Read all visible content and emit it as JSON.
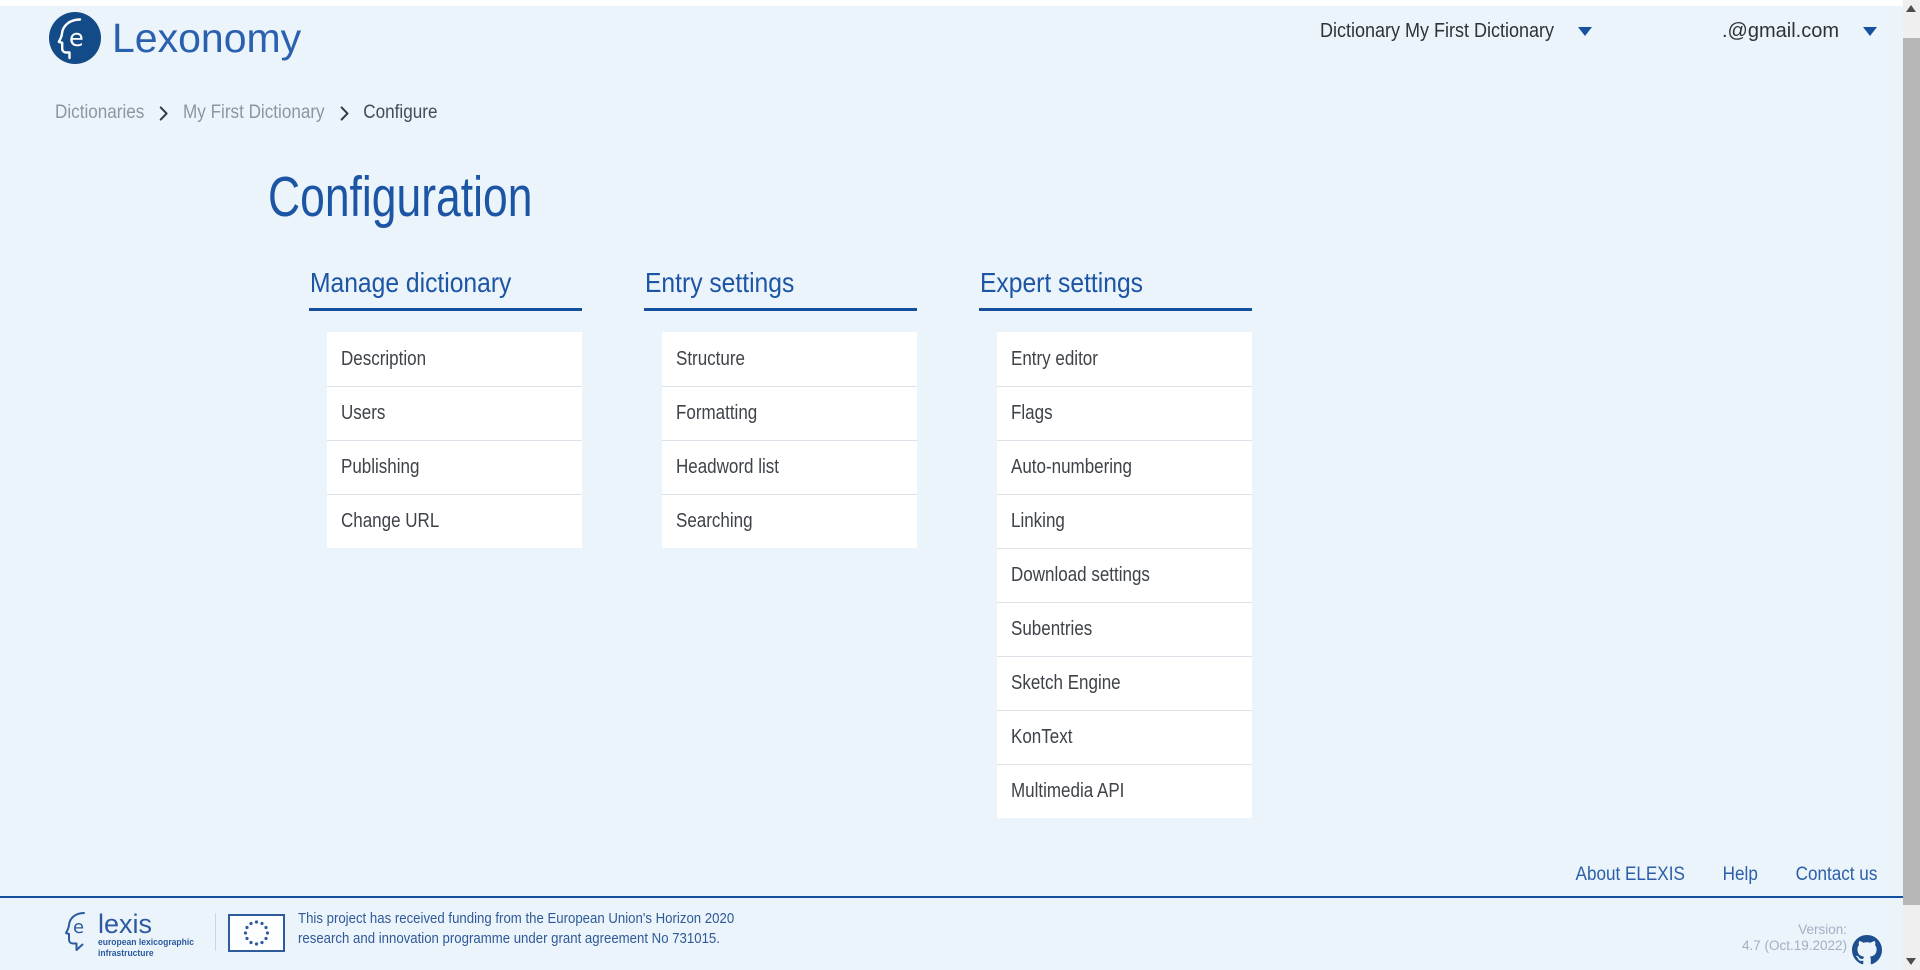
{
  "header": {
    "logo": {
      "glyph": "e",
      "wordmark": "Lexonomy"
    },
    "dictionary_selector": {
      "label": "Dictionary My First Dictionary",
      "caret_icon": "caret-down"
    },
    "user_menu": {
      "email": ".@gmail.com",
      "caret_icon": "caret-down"
    }
  },
  "breadcrumb": {
    "separator_icon": "chevron-right",
    "items": [
      {
        "label": "Dictionaries",
        "current": false
      },
      {
        "label": "My First Dictionary",
        "current": false
      },
      {
        "label": "Configure",
        "current": true
      }
    ]
  },
  "page": {
    "title": "Configuration"
  },
  "config_sections": [
    {
      "title": "Manage dictionary",
      "items": [
        "Description",
        "Users",
        "Publishing",
        "Change URL"
      ]
    },
    {
      "title": "Entry settings",
      "items": [
        "Structure",
        "Formatting",
        "Headword list",
        "Searching"
      ]
    },
    {
      "title": "Expert settings",
      "items": [
        "Entry editor",
        "Flags",
        "Auto-numbering",
        "Linking",
        "Download settings",
        "Subentries",
        "Sketch Engine",
        "KonText",
        "Multimedia API"
      ]
    }
  ],
  "footer_links": [
    "About ELEXIS",
    "Help",
    "Contact us"
  ],
  "footer": {
    "elexis_logo": {
      "glyph": "e",
      "wordmark": "lexis",
      "tagline_line1": "european lexicographic",
      "tagline_line2": "infrastructure"
    },
    "eu_flag_icon": "eu-flag",
    "funding_line1": "This project has received funding from the European Union's Horizon 2020",
    "funding_line2": "research and innovation programme under grant agreement No 731015.",
    "version_label": "Version:",
    "version_value": "4.7 (Oct.19.2022)",
    "github_icon": "github-octocat"
  },
  "colors": {
    "page_background": "#ebf3fb",
    "primary_blue": "#15529f",
    "heading_blue": "#1c55a4",
    "logo_navy": "#134a88",
    "wordmark_blue": "#2a61ae",
    "link_blue": "#2b5fa8",
    "card_background": "#ffffff",
    "item_text": "#3e4349",
    "breadcrumb_gray": "#8d959f",
    "footer_text_blue": "#2f5a97",
    "version_gray": "#a2b0c2"
  }
}
